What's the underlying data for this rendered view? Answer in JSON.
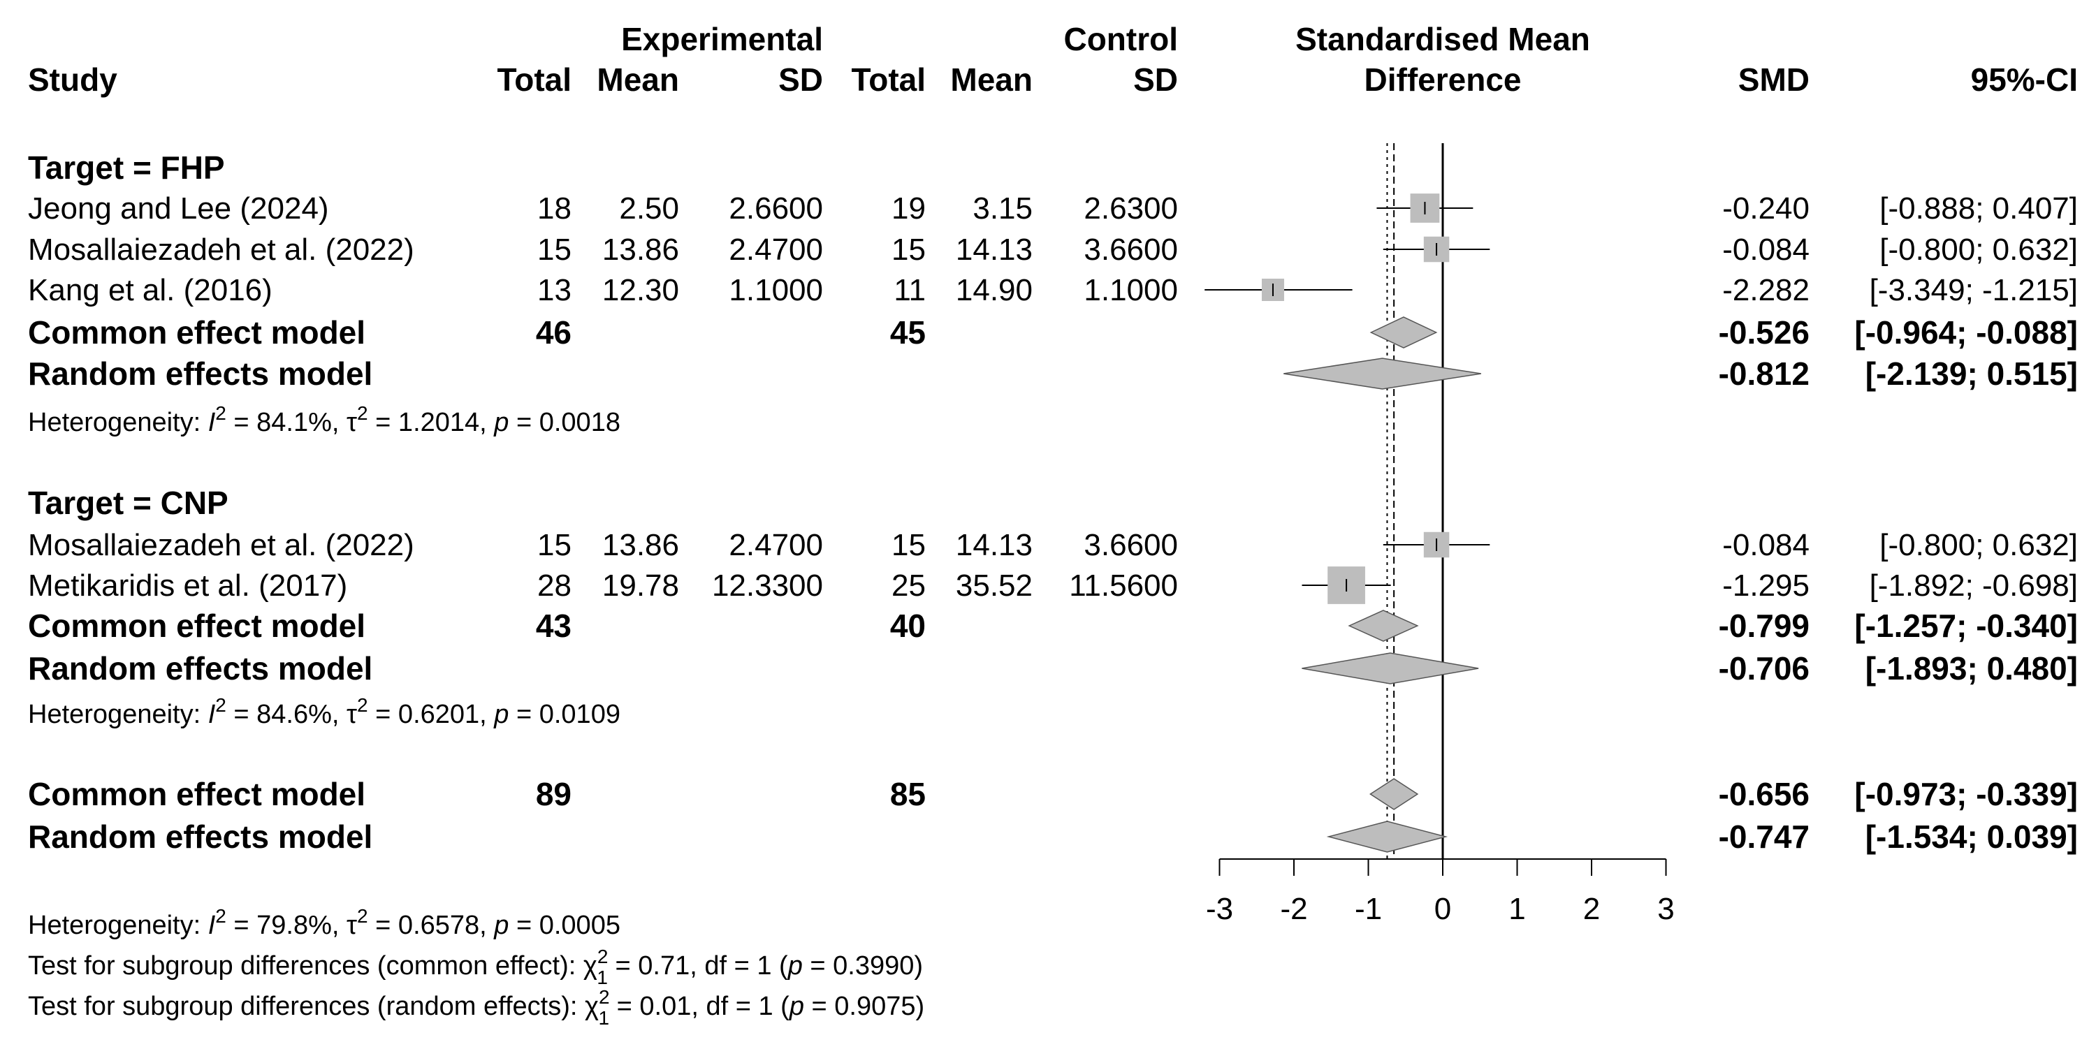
{
  "chart_data": {
    "type": "forest",
    "headers": {
      "study": "Study",
      "experimental": "Experimental",
      "control": "Control",
      "total": "Total",
      "mean": "Mean",
      "sd": "SD",
      "smd_title_1": "Standardised Mean",
      "smd_title_2": "Difference",
      "smd": "SMD",
      "ci": "95%-CI"
    },
    "axis": {
      "min": -3,
      "max": 3,
      "ticks": [
        -3,
        -2,
        -1,
        0,
        1,
        2,
        3
      ],
      "tick_labels": [
        "-3",
        "-2",
        "-1",
        "0",
        "1",
        "2",
        "3"
      ]
    },
    "common_effect_line": -0.656,
    "random_effect_line": -0.747,
    "subgroups": [
      {
        "label": "Target = FHP",
        "studies": [
          {
            "study": "Jeong and Lee (2024)",
            "e_total": "18",
            "e_mean": "2.50",
            "e_sd": "2.6600",
            "c_total": "19",
            "c_mean": "3.15",
            "c_sd": "2.6300",
            "smd": -0.24,
            "lower": -0.888,
            "upper": 0.407,
            "smd_text": "-0.240",
            "ci_text": "[-0.888;  0.407]"
          },
          {
            "study": "Mosallaiezadeh et al. (2022)",
            "e_total": "15",
            "e_mean": "13.86",
            "e_sd": "2.4700",
            "c_total": "15",
            "c_mean": "14.13",
            "c_sd": "3.6600",
            "smd": -0.084,
            "lower": -0.8,
            "upper": 0.632,
            "smd_text": "-0.084",
            "ci_text": "[-0.800;  0.632]"
          },
          {
            "study": "Kang et al. (2016)",
            "e_total": "13",
            "e_mean": "12.30",
            "e_sd": "1.1000",
            "c_total": "11",
            "c_mean": "14.90",
            "c_sd": "1.1000",
            "smd": -2.282,
            "lower": -3.349,
            "upper": -1.215,
            "smd_text": "-2.282",
            "ci_text": "[-3.349; -1.215]"
          }
        ],
        "common": {
          "label": "Common effect model",
          "e_total": "46",
          "c_total": "45",
          "smd": -0.526,
          "lower": -0.964,
          "upper": -0.088,
          "smd_text": "-0.526",
          "ci_text": "[-0.964; -0.088]"
        },
        "random": {
          "label": "Random effects model",
          "smd": -0.812,
          "lower": -2.139,
          "upper": 0.515,
          "smd_text": "-0.812",
          "ci_text": "[-2.139;  0.515]"
        },
        "heterogeneity": {
          "prefix": "Heterogeneity: ",
          "i": "I",
          "i_value": " = 84.1%, ",
          "tau": "τ",
          "tau_value": " = 1.2014, ",
          "p": "p",
          "p_value": " = 0.0018"
        }
      },
      {
        "label": "Target = CNP",
        "studies": [
          {
            "study": "Mosallaiezadeh et al. (2022)",
            "e_total": "15",
            "e_mean": "13.86",
            "e_sd": "2.4700",
            "c_total": "15",
            "c_mean": "14.13",
            "c_sd": "3.6600",
            "smd": -0.084,
            "lower": -0.8,
            "upper": 0.632,
            "smd_text": "-0.084",
            "ci_text": "[-0.800;  0.632]"
          },
          {
            "study": "Metikaridis et al. (2017)",
            "e_total": "28",
            "e_mean": "19.78",
            "e_sd": "12.3300",
            "c_total": "25",
            "c_mean": "35.52",
            "c_sd": "11.5600",
            "smd": -1.295,
            "lower": -1.892,
            "upper": -0.698,
            "smd_text": "-1.295",
            "ci_text": "[-1.892; -0.698]"
          }
        ],
        "common": {
          "label": "Common effect model",
          "e_total": "43",
          "c_total": "40",
          "smd": -0.799,
          "lower": -1.257,
          "upper": -0.34,
          "smd_text": "-0.799",
          "ci_text": "[-1.257; -0.340]"
        },
        "random": {
          "label": "Random effects model",
          "smd": -0.706,
          "lower": -1.893,
          "upper": 0.48,
          "smd_text": "-0.706",
          "ci_text": "[-1.893;  0.480]"
        },
        "heterogeneity": {
          "prefix": "Heterogeneity: ",
          "i": "I",
          "i_value": " = 84.6%, ",
          "tau": "τ",
          "tau_value": " = 0.6201, ",
          "p": "p",
          "p_value": " = 0.0109"
        }
      }
    ],
    "overall": {
      "common": {
        "label": "Common effect model",
        "e_total": "89",
        "c_total": "85",
        "smd": -0.656,
        "lower": -0.973,
        "upper": -0.339,
        "smd_text": "-0.656",
        "ci_text": "[-0.973; -0.339]"
      },
      "random": {
        "label": "Random effects model",
        "smd": -0.747,
        "lower": -1.534,
        "upper": 0.039,
        "smd_text": "-0.747",
        "ci_text": "[-1.534;  0.039]"
      },
      "heterogeneity": {
        "prefix": "Heterogeneity: ",
        "i": "I",
        "i_value": " = 79.8%, ",
        "tau": "τ",
        "tau_value": " = 0.6578, ",
        "p": "p",
        "p_value": " = 0.0005"
      },
      "subgroup_tests": [
        {
          "prefix": "Test for subgroup differences (common effect): ",
          "chi": "χ",
          "chi_sub": "1",
          "stat": " = 0.71, df = 1 (",
          "p": "p",
          "p_value": " = 0.3990)"
        },
        {
          "prefix": "Test for subgroup differences (random effects): ",
          "chi": "χ",
          "chi_sub": "1",
          "stat": " = 0.01, df = 1 (",
          "p": "p",
          "p_value": " = 0.9075)"
        }
      ]
    }
  }
}
